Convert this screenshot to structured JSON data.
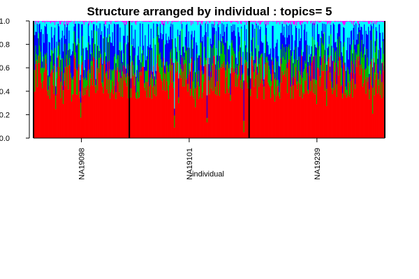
{
  "chart_data": {
    "type": "bar",
    "subtype": "stacked-structure",
    "title": "Structure arranged by individual : topics= 5",
    "xlabel": "individual",
    "ylabel": "",
    "ylim": [
      0,
      1
    ],
    "yticks": [
      "0.0",
      "0.2",
      "0.4",
      "0.6",
      "0.8",
      "1.0"
    ],
    "grid": false,
    "legend": "none",
    "groups": [
      {
        "label": "NA19098",
        "samples": 1200
      },
      {
        "label": "NA19101",
        "samples": 1500
      },
      {
        "label": "NA19239",
        "samples": 1700
      }
    ],
    "series": [
      {
        "color": "#ff0000",
        "mean_value": 0.52
      },
      {
        "color": "#00bb00",
        "mean_value": 0.13
      },
      {
        "color": "#0000ff",
        "mean_value": 0.18
      },
      {
        "color": "#00ffff",
        "mean_value": 0.15
      },
      {
        "color": "#ff00ff",
        "mean_value": 0.02
      }
    ]
  }
}
